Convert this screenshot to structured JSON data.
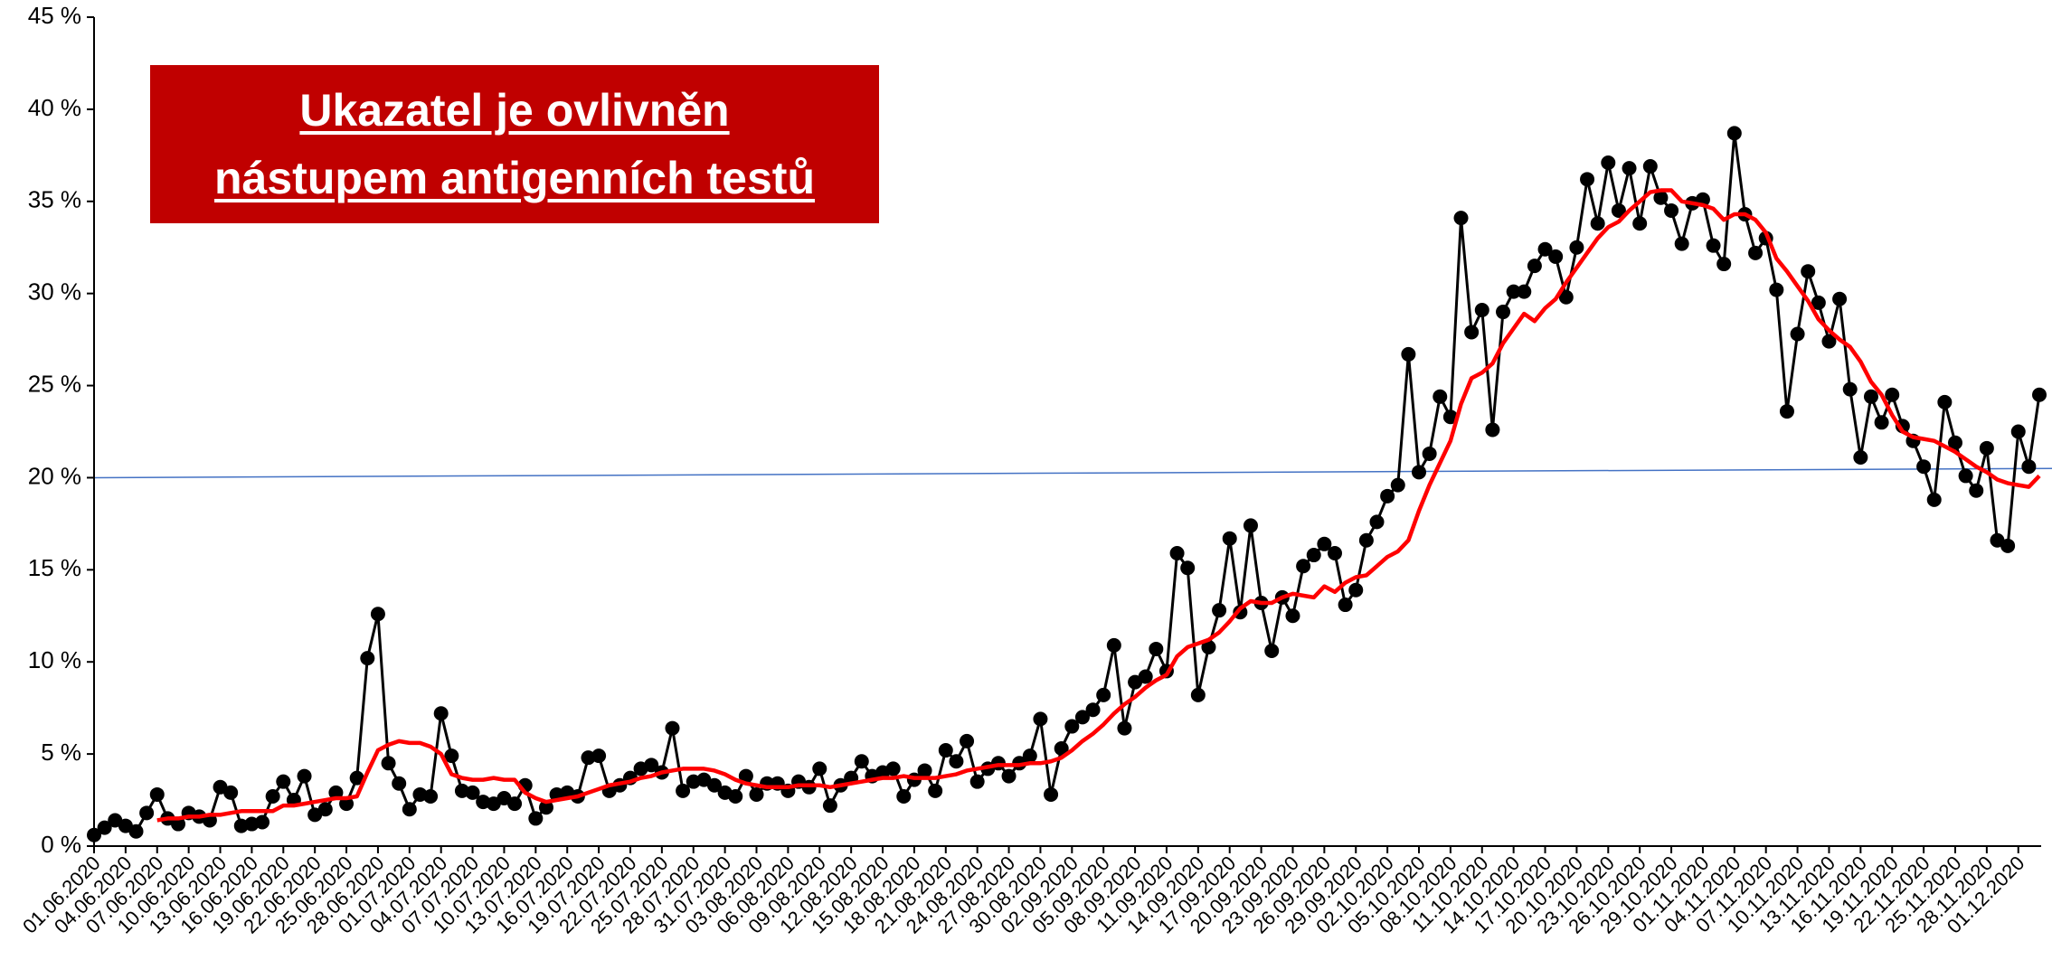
{
  "chart_data": {
    "type": "line",
    "annotation": [
      "Ukazatel je ovlivněn",
      "nástupem antigenních testů"
    ],
    "categories": [
      "01.06.2020",
      null,
      null,
      "04.06.2020",
      null,
      null,
      "07.06.2020",
      null,
      null,
      "10.06.2020",
      null,
      null,
      "13.06.2020",
      null,
      null,
      "16.06.2020",
      null,
      null,
      "19.06.2020",
      null,
      null,
      "22.06.2020",
      null,
      null,
      "25.06.2020",
      null,
      null,
      "28.06.2020",
      null,
      null,
      "01.07.2020",
      null,
      null,
      "04.07.2020",
      null,
      null,
      "07.07.2020",
      null,
      null,
      "10.07.2020",
      null,
      null,
      "13.07.2020",
      null,
      null,
      "16.07.2020",
      null,
      null,
      "19.07.2020",
      null,
      null,
      "22.07.2020",
      null,
      null,
      "25.07.2020",
      null,
      null,
      "28.07.2020",
      null,
      null,
      "31.07.2020",
      null,
      null,
      "03.08.2020",
      null,
      null,
      "06.08.2020",
      null,
      null,
      "09.08.2020",
      null,
      null,
      "12.08.2020",
      null,
      null,
      "15.08.2020",
      null,
      null,
      "18.08.2020",
      null,
      null,
      "21.08.2020",
      null,
      null,
      "24.08.2020",
      null,
      null,
      "27.08.2020",
      null,
      null,
      "30.08.2020",
      null,
      null,
      "02.09.2020",
      null,
      null,
      "05.09.2020",
      null,
      null,
      "08.09.2020",
      null,
      null,
      "11.09.2020",
      null,
      null,
      "14.09.2020",
      null,
      null,
      "17.09.2020",
      null,
      null,
      "20.09.2020",
      null,
      null,
      "23.09.2020",
      null,
      null,
      "26.09.2020",
      null,
      null,
      "29.09.2020",
      null,
      null,
      "02.10.2020",
      null,
      null,
      "05.10.2020",
      null,
      null,
      "08.10.2020",
      null,
      null,
      "11.10.2020",
      null,
      null,
      "14.10.2020",
      null,
      null,
      "17.10.2020",
      null,
      null,
      "20.10.2020",
      null,
      null,
      "23.10.2020",
      null,
      null,
      "26.10.2020",
      null,
      null,
      "29.10.2020",
      null,
      null,
      "01.11.2020",
      null,
      null,
      "04.11.2020",
      null,
      null,
      "07.11.2020",
      null,
      null,
      "10.11.2020",
      null,
      null,
      "13.11.2020",
      null,
      null,
      "16.11.2020",
      null,
      null,
      "19.11.2020",
      null,
      null,
      "22.11.2020",
      null,
      null,
      "25.11.2020",
      null,
      null,
      "28.11.2020",
      null,
      null,
      "01.12.2020",
      null,
      null
    ],
    "series": [
      {
        "color": "#000000",
        "markers": true,
        "values": [
          0.6,
          1.0,
          1.4,
          1.1,
          0.8,
          1.8,
          2.8,
          1.5,
          1.2,
          1.8,
          1.6,
          1.4,
          3.2,
          2.9,
          1.1,
          1.2,
          1.3,
          2.7,
          3.5,
          2.5,
          3.8,
          1.7,
          2.0,
          2.9,
          2.3,
          3.7,
          10.2,
          12.6,
          4.5,
          3.4,
          2.0,
          2.8,
          2.7,
          7.2,
          4.9,
          3.0,
          2.9,
          2.4,
          2.3,
          2.6,
          2.3,
          3.3,
          1.5,
          2.1,
          2.8,
          2.9,
          2.7,
          4.8,
          4.9,
          3.0,
          3.3,
          3.7,
          4.2,
          4.4,
          4.0,
          6.4,
          3.0,
          3.5,
          3.6,
          3.3,
          2.9,
          2.7,
          3.8,
          2.8,
          3.4,
          3.4,
          3.0,
          3.5,
          3.2,
          4.2,
          2.2,
          3.3,
          3.7,
          4.6,
          3.8,
          4.0,
          4.2,
          2.7,
          3.6,
          4.1,
          3.0,
          5.2,
          4.6,
          5.7,
          3.5,
          4.2,
          4.5,
          3.8,
          4.5,
          4.9,
          6.9,
          2.8,
          5.3,
          6.5,
          7.0,
          7.4,
          8.2,
          10.9,
          6.4,
          8.9,
          9.2,
          10.7,
          9.5,
          15.9,
          15.1,
          8.2,
          10.8,
          12.8,
          16.7,
          12.7,
          17.4,
          13.2,
          10.6,
          13.5,
          12.5,
          15.2,
          15.8,
          16.4,
          15.9,
          13.1,
          13.9,
          16.6,
          17.6,
          19.0,
          19.6,
          26.7,
          20.3,
          21.3,
          24.4,
          23.3,
          34.1,
          27.9,
          29.1,
          22.6,
          29.0,
          30.1,
          30.1,
          31.5,
          32.4,
          32.0,
          29.8,
          32.5,
          36.2,
          33.8,
          37.1,
          34.5,
          36.8,
          33.8,
          36.9,
          35.2,
          34.5,
          32.7,
          34.9,
          35.1,
          32.6,
          31.6,
          38.7,
          34.3,
          32.2,
          33.0,
          30.2,
          23.6,
          27.8,
          31.2,
          29.5,
          27.4,
          29.7,
          24.8,
          21.1,
          24.4,
          23.0,
          24.5,
          22.8,
          22.0,
          20.6,
          18.8,
          24.1,
          21.9,
          20.1,
          19.3,
          21.6,
          16.6,
          16.3,
          22.5,
          20.6,
          24.5
        ]
      },
      {
        "color": "#ff0000",
        "markers": false,
        "values": [
          null,
          null,
          null,
          null,
          null,
          null,
          1.4,
          1.5,
          1.5,
          1.6,
          1.6,
          1.7,
          1.7,
          1.8,
          1.9,
          1.9,
          1.9,
          1.9,
          2.2,
          2.2,
          2.3,
          2.4,
          2.5,
          2.6,
          2.6,
          2.7,
          4.0,
          5.2,
          5.5,
          5.7,
          5.6,
          5.6,
          5.4,
          5.0,
          3.9,
          3.7,
          3.6,
          3.6,
          3.7,
          3.6,
          3.6,
          2.9,
          2.6,
          2.4,
          2.5,
          2.6,
          2.7,
          2.9,
          3.1,
          3.3,
          3.4,
          3.5,
          3.7,
          3.8,
          4.0,
          4.1,
          4.2,
          4.2,
          4.2,
          4.1,
          3.9,
          3.6,
          3.4,
          3.3,
          3.2,
          3.2,
          3.2,
          3.3,
          3.3,
          3.3,
          3.2,
          3.3,
          3.4,
          3.5,
          3.6,
          3.7,
          3.7,
          3.8,
          3.7,
          3.7,
          3.7,
          3.8,
          3.9,
          4.1,
          4.2,
          4.3,
          4.4,
          4.4,
          4.4,
          4.5,
          4.5,
          4.6,
          4.8,
          5.2,
          5.7,
          6.1,
          6.6,
          7.2,
          7.7,
          8.1,
          8.6,
          9.0,
          9.3,
          10.3,
          10.8,
          11.0,
          11.2,
          11.6,
          12.2,
          12.9,
          13.3,
          13.2,
          13.2,
          13.5,
          13.7,
          13.6,
          13.5,
          14.1,
          13.8,
          14.3,
          14.6,
          14.7,
          15.2,
          15.7,
          16.0,
          16.6,
          18.2,
          19.6,
          20.8,
          22.0,
          24.0,
          25.4,
          25.7,
          26.2,
          27.3,
          28.1,
          28.9,
          28.5,
          29.2,
          29.7,
          30.6,
          31.4,
          32.2,
          33.0,
          33.6,
          33.9,
          34.5,
          35.0,
          35.5,
          35.6,
          35.6,
          35.0,
          34.9,
          34.8,
          34.6,
          34.0,
          34.3,
          34.3,
          34.0,
          33.3,
          31.9,
          31.2,
          30.4,
          29.6,
          28.6,
          28.0,
          27.5,
          27.1,
          26.3,
          25.2,
          24.5,
          23.4,
          22.5,
          22.2,
          22.1,
          22.0,
          21.7,
          21.4,
          21.0,
          20.6,
          20.3,
          19.9,
          19.7,
          19.6,
          19.5,
          20.1
        ]
      }
    ],
    "reference_line": {
      "color": "#4472c4",
      "values": [
        20.0,
        20.5
      ]
    },
    "ylim": [
      0,
      45
    ],
    "yticks": [
      {
        "value": 0,
        "label": "0 %"
      },
      {
        "value": 5,
        "label": "5 %"
      },
      {
        "value": 10,
        "label": "10 %"
      },
      {
        "value": 15,
        "label": "15 %"
      },
      {
        "value": 20,
        "label": "20 %"
      },
      {
        "value": 25,
        "label": "25 %"
      },
      {
        "value": 30,
        "label": "30 %"
      },
      {
        "value": 35,
        "label": "35 %"
      },
      {
        "value": 40,
        "label": "40 %"
      },
      {
        "value": 45,
        "label": "45 %"
      }
    ],
    "grid": false
  }
}
